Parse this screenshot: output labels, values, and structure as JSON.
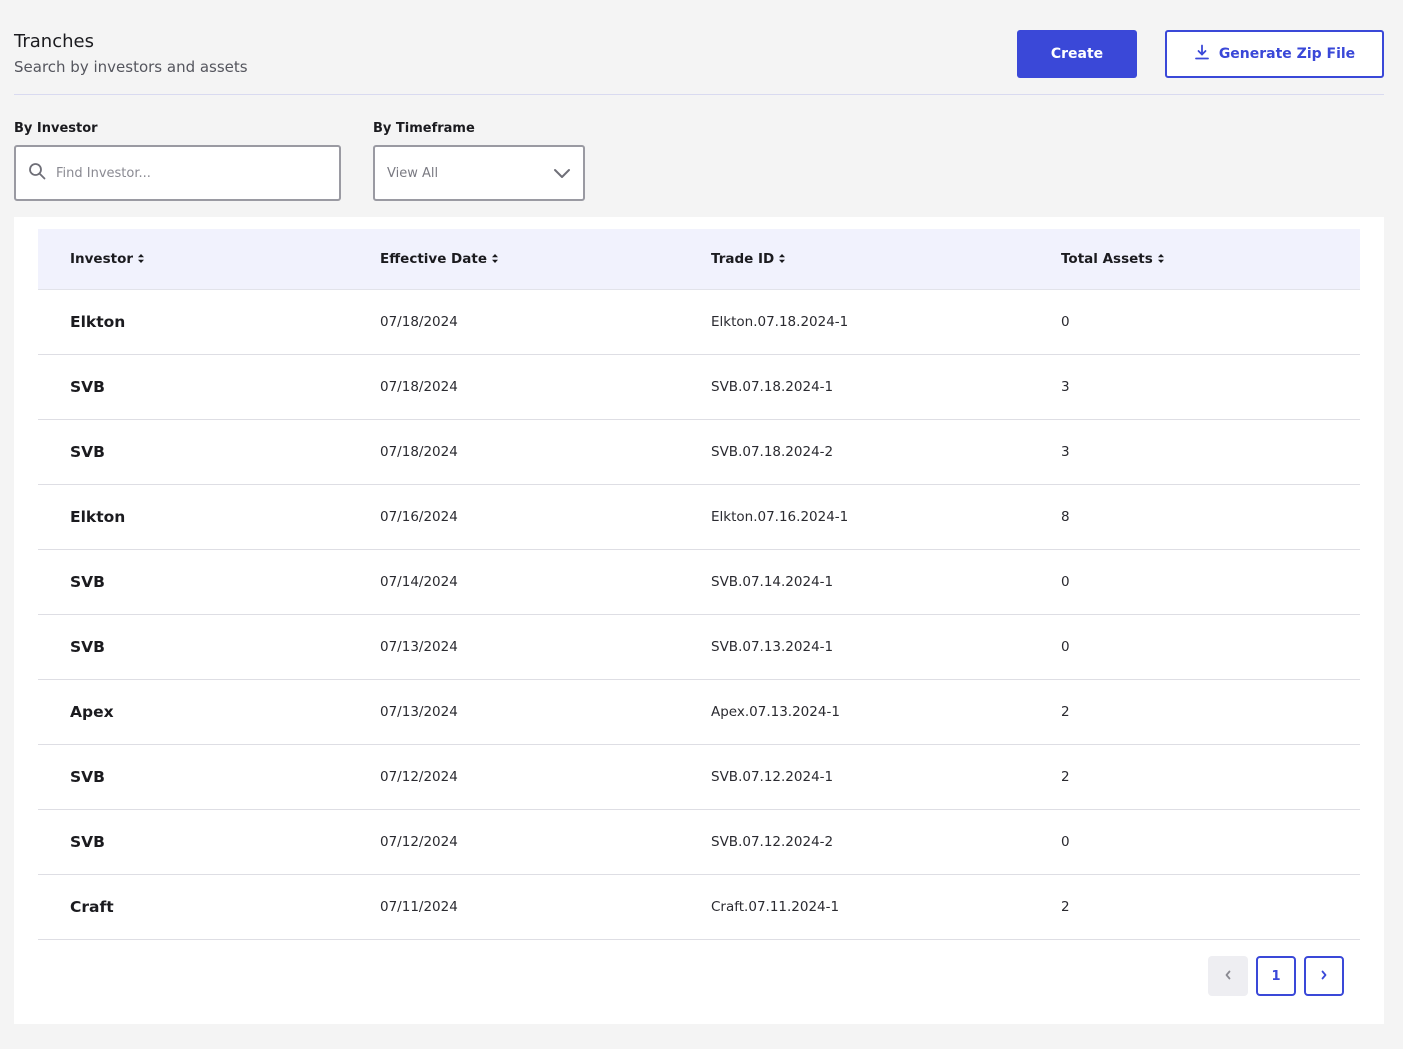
{
  "header": {
    "title": "Tranches",
    "subtitle": "Search by investors and assets",
    "create_label": "Create",
    "zip_label": "Generate Zip File"
  },
  "filters": {
    "investor_label": "By Investor",
    "investor_placeholder": "Find Investor...",
    "timeframe_label": "By Timeframe",
    "timeframe_value": "View All"
  },
  "table": {
    "columns": [
      "Investor",
      "Effective Date",
      "Trade ID",
      "Total Assets"
    ],
    "rows": [
      {
        "investor": "Elkton",
        "date": "07/18/2024",
        "trade_id": "Elkton.07.18.2024-1",
        "assets": "0"
      },
      {
        "investor": "SVB",
        "date": "07/18/2024",
        "trade_id": "SVB.07.18.2024-1",
        "assets": "3"
      },
      {
        "investor": "SVB",
        "date": "07/18/2024",
        "trade_id": "SVB.07.18.2024-2",
        "assets": "3"
      },
      {
        "investor": "Elkton",
        "date": "07/16/2024",
        "trade_id": "Elkton.07.16.2024-1",
        "assets": "8"
      },
      {
        "investor": "SVB",
        "date": "07/14/2024",
        "trade_id": "SVB.07.14.2024-1",
        "assets": "0"
      },
      {
        "investor": "SVB",
        "date": "07/13/2024",
        "trade_id": "SVB.07.13.2024-1",
        "assets": "0"
      },
      {
        "investor": "Apex",
        "date": "07/13/2024",
        "trade_id": "Apex.07.13.2024-1",
        "assets": "2"
      },
      {
        "investor": "SVB",
        "date": "07/12/2024",
        "trade_id": "SVB.07.12.2024-1",
        "assets": "2"
      },
      {
        "investor": "SVB",
        "date": "07/12/2024",
        "trade_id": "SVB.07.12.2024-2",
        "assets": "0"
      },
      {
        "investor": "Craft",
        "date": "07/11/2024",
        "trade_id": "Craft.07.11.2024-1",
        "assets": "2"
      }
    ]
  },
  "pagination": {
    "current_page": "1"
  },
  "colors": {
    "accent": "#3a48d8",
    "header_bg": "#f1f2fd",
    "page_bg": "#f4f4f4"
  },
  "icons": {
    "zip": "download-icon",
    "search": "search-icon",
    "select": "chevron-down-icon",
    "sort": "sort-icon",
    "prev": "chevron-left-icon",
    "next": "chevron-right-icon"
  }
}
